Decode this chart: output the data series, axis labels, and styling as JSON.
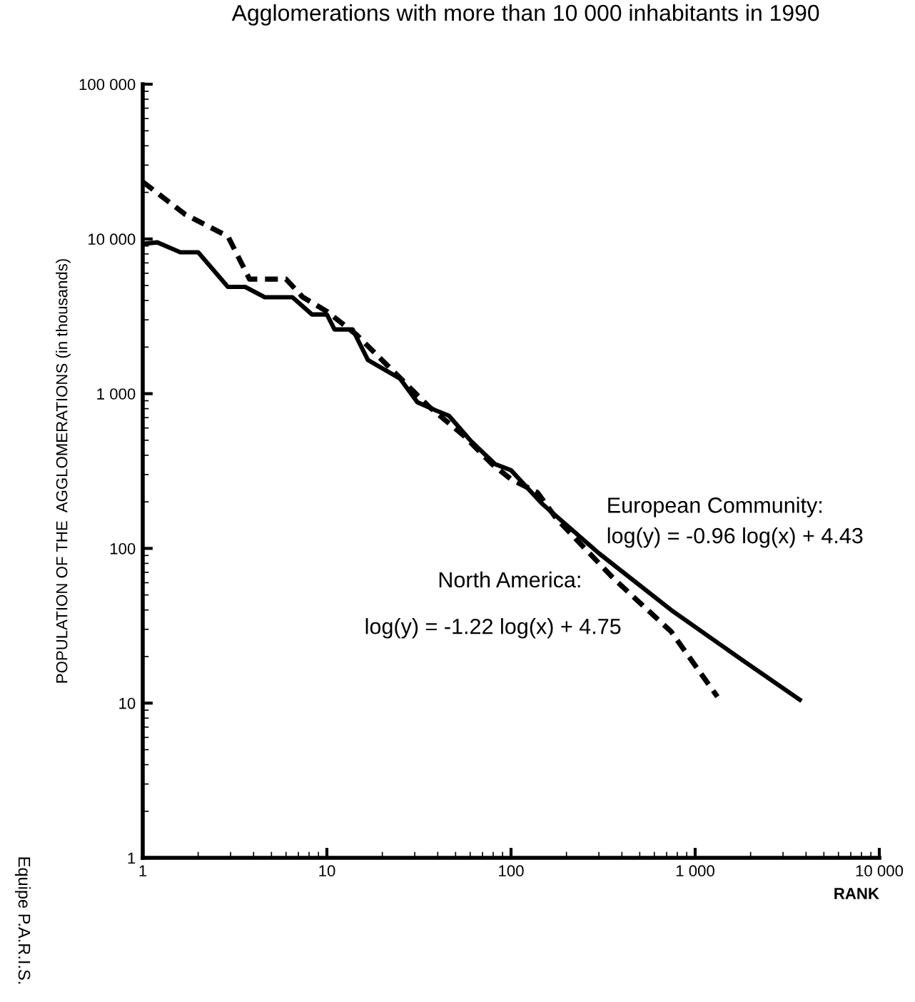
{
  "chart_data": {
    "type": "line",
    "title": "Agglomerations with more than 10 000 inhabitants in 1990",
    "xlabel": "RANK",
    "ylabel": "POPULATION OF THE  AGGLOMERATIONS (in thousands)",
    "log": "xy",
    "grid": false,
    "legend": false,
    "marker": "none",
    "xlim": [
      1,
      10000
    ],
    "ylim": [
      1,
      100000
    ],
    "xticks": [
      1,
      10,
      100,
      {
        "value": 1000,
        "label": "1 000"
      },
      {
        "value": 10000,
        "label": "10 000"
      }
    ],
    "yticks": [
      1,
      10,
      100,
      {
        "value": 1000,
        "label": "1 000"
      },
      {
        "value": 10000,
        "label": "10 000"
      },
      {
        "value": 100000,
        "label": "100 000"
      }
    ],
    "series": [
      {
        "name": "European Community:",
        "color": "#000000",
        "line_style": "solid",
        "x": [
          1,
          1.2,
          1.6,
          2,
          2.9,
          3.6,
          4.6,
          6.5,
          8.3,
          10,
          11,
          13.8,
          16.7,
          25,
          31,
          39,
          46,
          60,
          82,
          100,
          147,
          300,
          740,
          1800,
          3700
        ],
        "values": [
          9300,
          9500,
          8200,
          8200,
          4900,
          4900,
          4200,
          4200,
          3250,
          3250,
          2600,
          2600,
          1650,
          1250,
          880,
          780,
          720,
          500,
          350,
          320,
          195,
          93,
          40,
          19,
          10.5
        ]
      },
      {
        "name": "North America:",
        "color": "#000000",
        "line_style": "dashed",
        "x": [
          1,
          1.7,
          2.9,
          3.8,
          6,
          7.4,
          10,
          14.5,
          21,
          36,
          55,
          79,
          100,
          139,
          177,
          360,
          740,
          1320
        ],
        "values": [
          23400,
          14400,
          10400,
          5500,
          5500,
          4200,
          3400,
          2400,
          1550,
          820,
          540,
          350,
          280,
          230,
          155,
          64,
          29,
          11
        ]
      }
    ],
    "annotations": [
      "log(y) = -0.96 log(x) + 4.43",
      "log(y) = -1.22 log(x) + 4.75",
      "Equipe P.A.R.I.S."
    ]
  }
}
